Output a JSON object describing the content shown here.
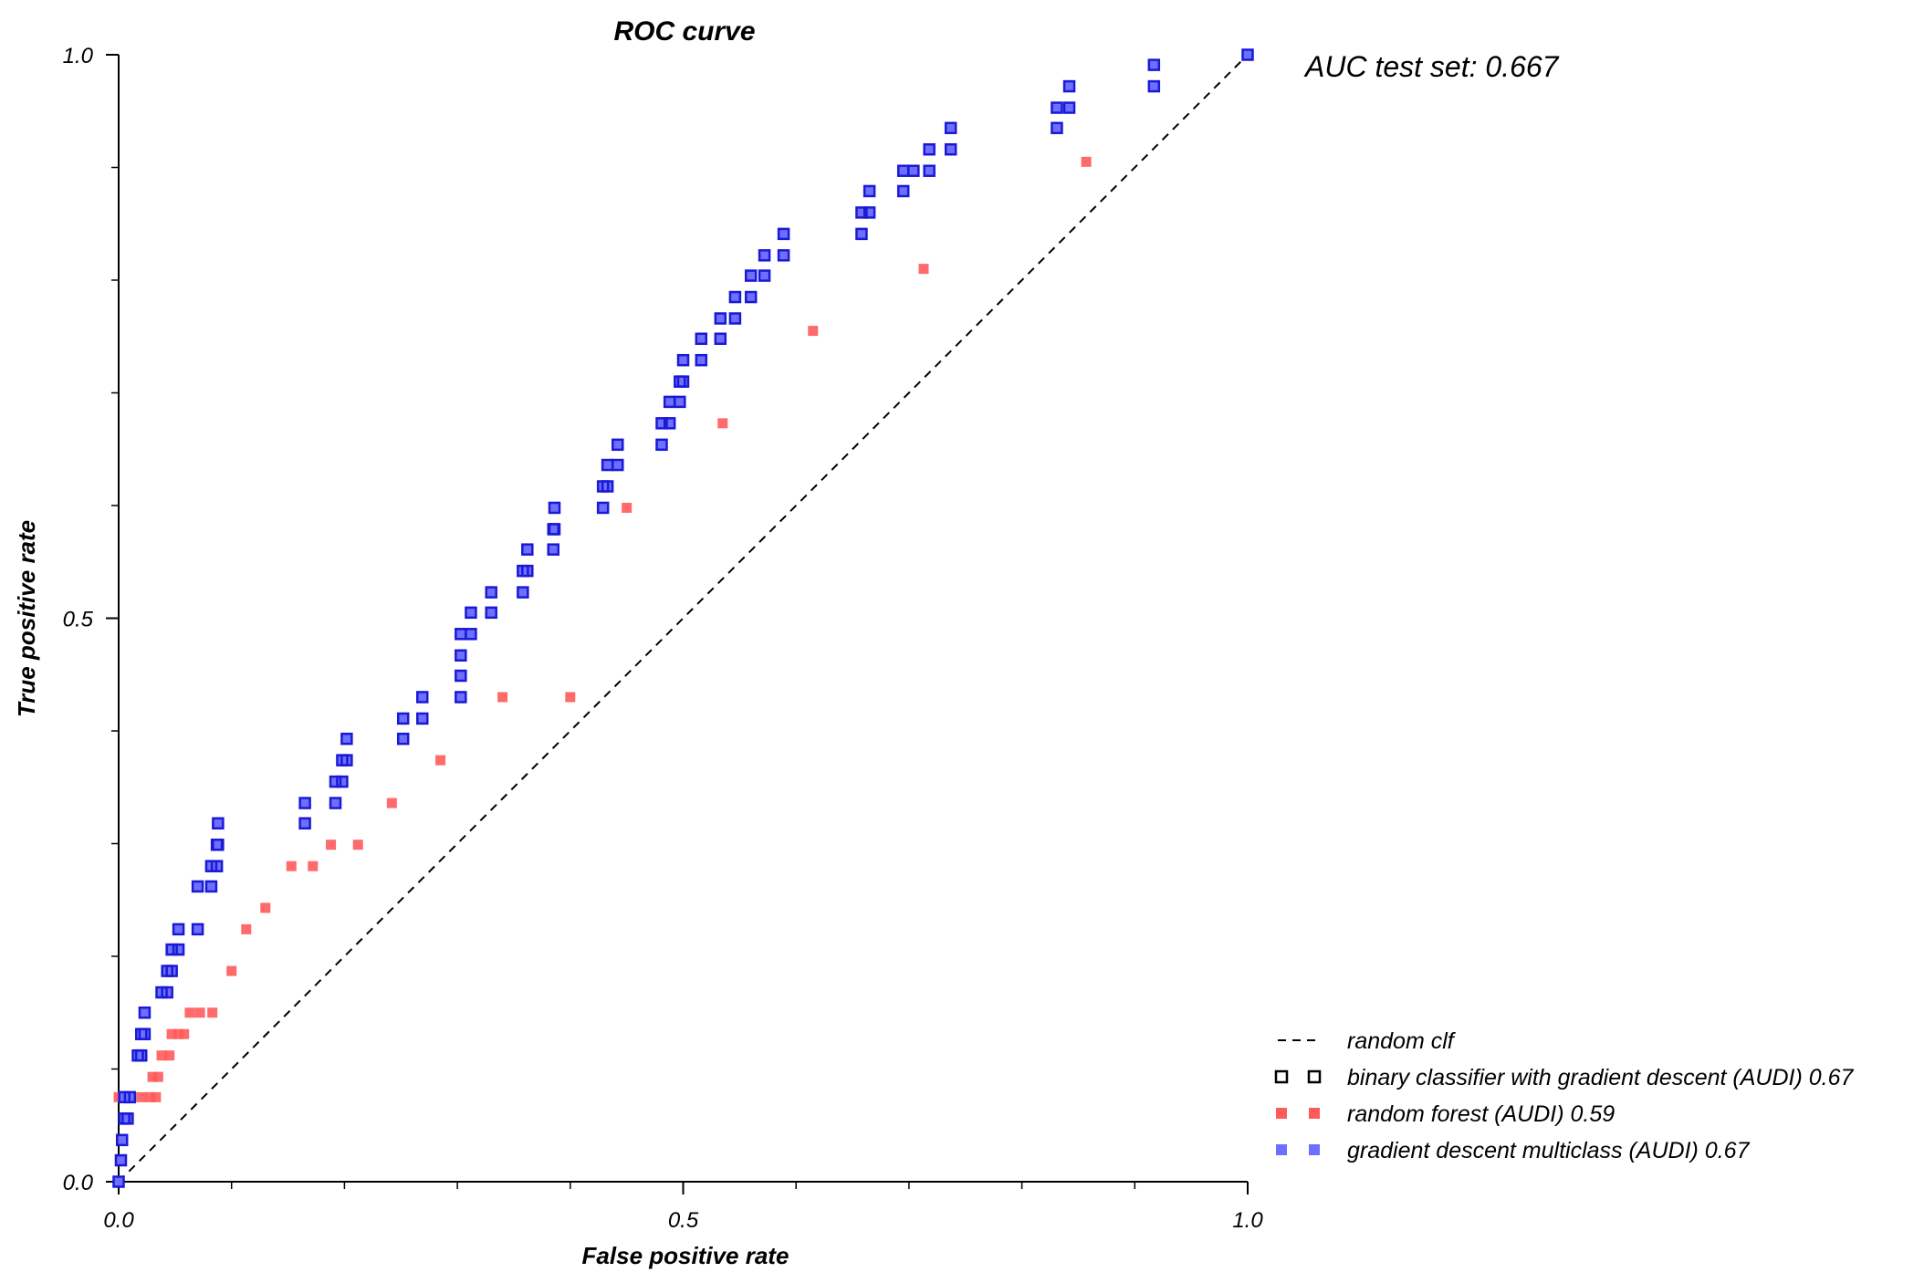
{
  "chart_data": {
    "type": "scatter",
    "title": "ROC curve",
    "xlabel": "False positive rate",
    "ylabel": "True positive rate",
    "xlim": [
      0,
      1
    ],
    "ylim": [
      0,
      1
    ],
    "x_ticks": [
      {
        "value": 0,
        "label": "0.0"
      },
      {
        "value": 0.5,
        "label": "0.5"
      },
      {
        "value": 1,
        "label": "1.0"
      }
    ],
    "y_ticks": [
      {
        "value": 0,
        "label": "0.0"
      },
      {
        "value": 0.5,
        "label": "0.5"
      },
      {
        "value": 1,
        "label": "1.0"
      }
    ],
    "x_minor_ticks": [
      0.1,
      0.2,
      0.3,
      0.4,
      0.6,
      0.7,
      0.8,
      0.9
    ],
    "y_minor_ticks": [
      0.1,
      0.2,
      0.3,
      0.4,
      0.6,
      0.7,
      0.8,
      0.9
    ],
    "grid": false,
    "legend_position": "bottom-right",
    "annotation": "AUC test set: 0.667",
    "series": [
      {
        "name": "random clf",
        "kind": "dashed-line",
        "color": "#000000",
        "points": [
          [
            0,
            0
          ],
          [
            1,
            1
          ]
        ]
      },
      {
        "name": "binary classifier with gradient descent (AUDI) 0.67",
        "kind": "hollow-square",
        "color": "#000000",
        "points": [
          [
            0.0,
            0.0
          ],
          [
            0.002,
            0.019
          ],
          [
            0.003,
            0.037
          ],
          [
            0.005,
            0.056
          ],
          [
            0.005,
            0.075
          ],
          [
            0.008,
            0.056
          ],
          [
            0.01,
            0.075
          ],
          [
            0.017,
            0.112
          ],
          [
            0.02,
            0.112
          ],
          [
            0.02,
            0.131
          ],
          [
            0.023,
            0.131
          ],
          [
            0.023,
            0.15
          ],
          [
            0.038,
            0.168
          ],
          [
            0.043,
            0.168
          ],
          [
            0.043,
            0.187
          ],
          [
            0.047,
            0.187
          ],
          [
            0.047,
            0.206
          ],
          [
            0.053,
            0.206
          ],
          [
            0.053,
            0.224
          ],
          [
            0.07,
            0.224
          ],
          [
            0.07,
            0.262
          ],
          [
            0.082,
            0.262
          ],
          [
            0.082,
            0.28
          ],
          [
            0.087,
            0.28
          ],
          [
            0.087,
            0.299
          ],
          [
            0.088,
            0.299
          ],
          [
            0.088,
            0.318
          ],
          [
            0.165,
            0.318
          ],
          [
            0.165,
            0.336
          ],
          [
            0.192,
            0.336
          ],
          [
            0.192,
            0.355
          ],
          [
            0.198,
            0.355
          ],
          [
            0.198,
            0.374
          ],
          [
            0.202,
            0.374
          ],
          [
            0.202,
            0.393
          ],
          [
            0.252,
            0.393
          ],
          [
            0.252,
            0.411
          ],
          [
            0.269,
            0.411
          ],
          [
            0.269,
            0.43
          ],
          [
            0.303,
            0.43
          ],
          [
            0.303,
            0.449
          ],
          [
            0.303,
            0.467
          ],
          [
            0.303,
            0.486
          ],
          [
            0.312,
            0.486
          ],
          [
            0.312,
            0.505
          ],
          [
            0.33,
            0.505
          ],
          [
            0.33,
            0.523
          ],
          [
            0.358,
            0.523
          ],
          [
            0.358,
            0.542
          ],
          [
            0.362,
            0.542
          ],
          [
            0.362,
            0.561
          ],
          [
            0.385,
            0.561
          ],
          [
            0.385,
            0.579
          ],
          [
            0.386,
            0.579
          ],
          [
            0.386,
            0.598
          ],
          [
            0.429,
            0.598
          ],
          [
            0.429,
            0.617
          ],
          [
            0.433,
            0.617
          ],
          [
            0.433,
            0.636
          ],
          [
            0.442,
            0.636
          ],
          [
            0.442,
            0.654
          ],
          [
            0.481,
            0.654
          ],
          [
            0.481,
            0.673
          ],
          [
            0.488,
            0.673
          ],
          [
            0.488,
            0.692
          ],
          [
            0.497,
            0.692
          ],
          [
            0.497,
            0.71
          ],
          [
            0.5,
            0.71
          ],
          [
            0.5,
            0.729
          ],
          [
            0.516,
            0.729
          ],
          [
            0.516,
            0.748
          ],
          [
            0.533,
            0.748
          ],
          [
            0.533,
            0.766
          ],
          [
            0.546,
            0.766
          ],
          [
            0.546,
            0.785
          ],
          [
            0.56,
            0.785
          ],
          [
            0.56,
            0.804
          ],
          [
            0.572,
            0.804
          ],
          [
            0.572,
            0.822
          ],
          [
            0.589,
            0.822
          ],
          [
            0.589,
            0.841
          ],
          [
            0.658,
            0.841
          ],
          [
            0.658,
            0.86
          ],
          [
            0.665,
            0.86
          ],
          [
            0.665,
            0.879
          ],
          [
            0.695,
            0.879
          ],
          [
            0.695,
            0.897
          ],
          [
            0.704,
            0.897
          ],
          [
            0.718,
            0.897
          ],
          [
            0.718,
            0.916
          ],
          [
            0.737,
            0.916
          ],
          [
            0.737,
            0.935
          ],
          [
            0.831,
            0.935
          ],
          [
            0.831,
            0.953
          ],
          [
            0.842,
            0.953
          ],
          [
            0.842,
            0.972
          ],
          [
            0.917,
            0.972
          ],
          [
            0.917,
            0.991
          ],
          [
            1.0,
            1.0
          ]
        ]
      },
      {
        "name": "random forest (AUDI) 0.59",
        "kind": "filled-square",
        "color": "#ff5a5a",
        "points": [
          [
            0.0,
            0.0
          ],
          [
            0.0,
            0.075
          ],
          [
            0.008,
            0.075
          ],
          [
            0.02,
            0.075
          ],
          [
            0.028,
            0.075
          ],
          [
            0.033,
            0.075
          ],
          [
            0.03,
            0.093
          ],
          [
            0.035,
            0.093
          ],
          [
            0.038,
            0.112
          ],
          [
            0.045,
            0.112
          ],
          [
            0.047,
            0.131
          ],
          [
            0.053,
            0.131
          ],
          [
            0.058,
            0.131
          ],
          [
            0.063,
            0.15
          ],
          [
            0.072,
            0.15
          ],
          [
            0.083,
            0.15
          ],
          [
            0.1,
            0.187
          ],
          [
            0.113,
            0.224
          ],
          [
            0.13,
            0.243
          ],
          [
            0.153,
            0.28
          ],
          [
            0.172,
            0.28
          ],
          [
            0.188,
            0.299
          ],
          [
            0.212,
            0.299
          ],
          [
            0.242,
            0.336
          ],
          [
            0.285,
            0.374
          ],
          [
            0.34,
            0.43
          ],
          [
            0.4,
            0.43
          ],
          [
            0.45,
            0.598
          ],
          [
            0.535,
            0.673
          ],
          [
            0.615,
            0.755
          ],
          [
            0.713,
            0.81
          ],
          [
            0.857,
            0.905
          ],
          [
            1.0,
            1.0
          ]
        ]
      },
      {
        "name": "gradient descent multiclass (AUDI) 0.67",
        "kind": "filled-square",
        "color": "#6e6eff",
        "points": [
          [
            0.0,
            0.0
          ],
          [
            0.002,
            0.019
          ],
          [
            0.003,
            0.037
          ],
          [
            0.005,
            0.056
          ],
          [
            0.005,
            0.075
          ],
          [
            0.008,
            0.056
          ],
          [
            0.01,
            0.075
          ],
          [
            0.017,
            0.112
          ],
          [
            0.02,
            0.112
          ],
          [
            0.02,
            0.131
          ],
          [
            0.023,
            0.131
          ],
          [
            0.023,
            0.15
          ],
          [
            0.038,
            0.168
          ],
          [
            0.043,
            0.168
          ],
          [
            0.043,
            0.187
          ],
          [
            0.047,
            0.187
          ],
          [
            0.047,
            0.206
          ],
          [
            0.053,
            0.206
          ],
          [
            0.053,
            0.224
          ],
          [
            0.07,
            0.224
          ],
          [
            0.07,
            0.262
          ],
          [
            0.082,
            0.262
          ],
          [
            0.082,
            0.28
          ],
          [
            0.087,
            0.28
          ],
          [
            0.087,
            0.299
          ],
          [
            0.088,
            0.299
          ],
          [
            0.088,
            0.318
          ],
          [
            0.165,
            0.318
          ],
          [
            0.165,
            0.336
          ],
          [
            0.192,
            0.336
          ],
          [
            0.192,
            0.355
          ],
          [
            0.198,
            0.355
          ],
          [
            0.198,
            0.374
          ],
          [
            0.202,
            0.374
          ],
          [
            0.202,
            0.393
          ],
          [
            0.252,
            0.393
          ],
          [
            0.252,
            0.411
          ],
          [
            0.269,
            0.411
          ],
          [
            0.269,
            0.43
          ],
          [
            0.303,
            0.43
          ],
          [
            0.303,
            0.449
          ],
          [
            0.303,
            0.467
          ],
          [
            0.303,
            0.486
          ],
          [
            0.312,
            0.486
          ],
          [
            0.312,
            0.505
          ],
          [
            0.33,
            0.505
          ],
          [
            0.33,
            0.523
          ],
          [
            0.358,
            0.523
          ],
          [
            0.358,
            0.542
          ],
          [
            0.362,
            0.542
          ],
          [
            0.362,
            0.561
          ],
          [
            0.385,
            0.561
          ],
          [
            0.385,
            0.579
          ],
          [
            0.386,
            0.579
          ],
          [
            0.386,
            0.598
          ],
          [
            0.429,
            0.598
          ],
          [
            0.429,
            0.617
          ],
          [
            0.433,
            0.617
          ],
          [
            0.433,
            0.636
          ],
          [
            0.442,
            0.636
          ],
          [
            0.442,
            0.654
          ],
          [
            0.481,
            0.654
          ],
          [
            0.481,
            0.673
          ],
          [
            0.488,
            0.673
          ],
          [
            0.488,
            0.692
          ],
          [
            0.497,
            0.692
          ],
          [
            0.497,
            0.71
          ],
          [
            0.5,
            0.71
          ],
          [
            0.5,
            0.729
          ],
          [
            0.516,
            0.729
          ],
          [
            0.516,
            0.748
          ],
          [
            0.533,
            0.748
          ],
          [
            0.533,
            0.766
          ],
          [
            0.546,
            0.766
          ],
          [
            0.546,
            0.785
          ],
          [
            0.56,
            0.785
          ],
          [
            0.56,
            0.804
          ],
          [
            0.572,
            0.804
          ],
          [
            0.572,
            0.822
          ],
          [
            0.589,
            0.822
          ],
          [
            0.589,
            0.841
          ],
          [
            0.658,
            0.841
          ],
          [
            0.658,
            0.86
          ],
          [
            0.665,
            0.86
          ],
          [
            0.665,
            0.879
          ],
          [
            0.695,
            0.879
          ],
          [
            0.695,
            0.897
          ],
          [
            0.704,
            0.897
          ],
          [
            0.718,
            0.897
          ],
          [
            0.718,
            0.916
          ],
          [
            0.737,
            0.916
          ],
          [
            0.737,
            0.935
          ],
          [
            0.831,
            0.935
          ],
          [
            0.831,
            0.953
          ],
          [
            0.842,
            0.953
          ],
          [
            0.842,
            0.972
          ],
          [
            0.917,
            0.972
          ],
          [
            0.917,
            0.991
          ],
          [
            1.0,
            1.0
          ]
        ]
      }
    ]
  }
}
